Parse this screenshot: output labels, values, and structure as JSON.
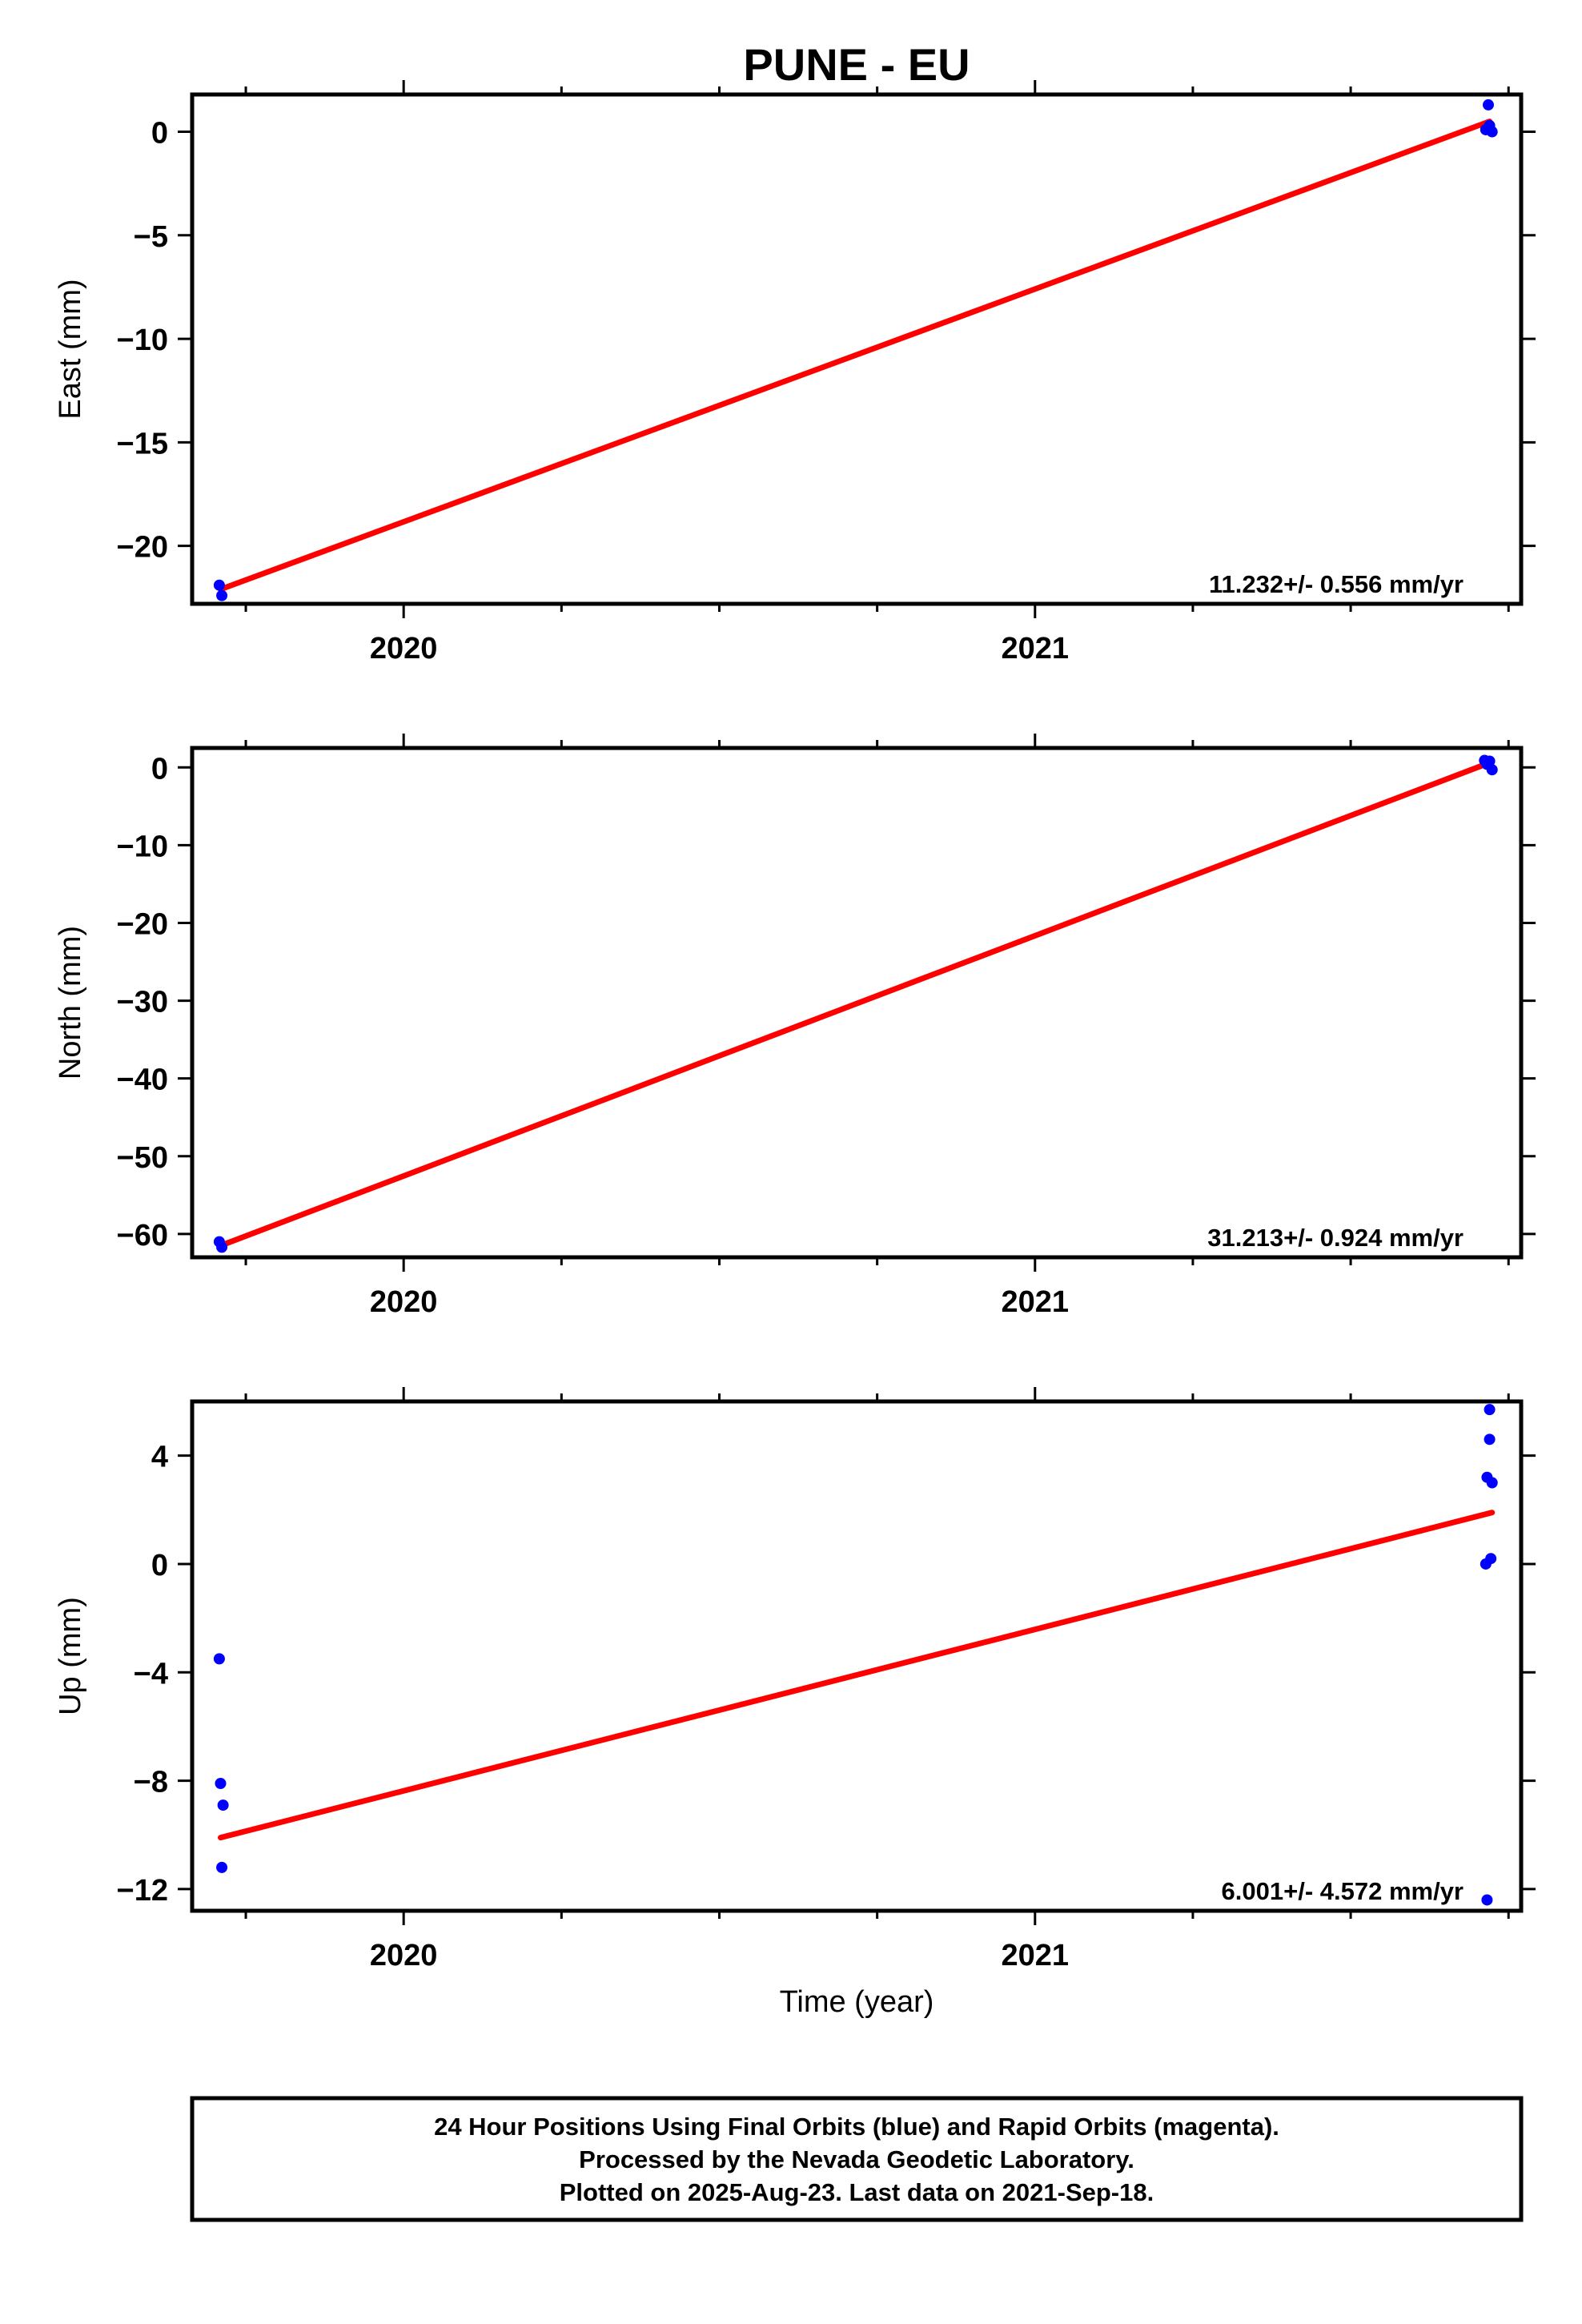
{
  "chart_data": [
    {
      "type": "scatter",
      "title": "PUNE - EU",
      "xlabel": "",
      "ylabel": "East (mm)",
      "xlim": [
        2019.665,
        2021.77
      ],
      "ylim": [
        -22.8,
        1.8
      ],
      "xticks": [
        2020,
        2021
      ],
      "xtick_labels": [
        "2020",
        "2021"
      ],
      "yticks": [
        0,
        -5,
        -10,
        -15,
        -20
      ],
      "ytick_labels": [
        "0",
        "−5",
        "−10",
        "−15",
        "−20"
      ],
      "grid": false,
      "series": [
        {
          "color": "#0000ff",
          "x": [
            2019.708,
            2019.712,
            2021.714,
            2021.718,
            2021.72,
            2021.724
          ],
          "y": [
            -21.9,
            -22.4,
            0.1,
            1.3,
            0.3,
            0.0
          ]
        },
        {
          "color": "#ff0000",
          "x": [
            2019.71,
            2021.72
          ],
          "y": [
            -22.1,
            0.5
          ]
        }
      ],
      "annotation": "11.232+/- 0.556 mm/yr"
    },
    {
      "type": "scatter",
      "xlabel": "",
      "ylabel": "North (mm)",
      "xlim": [
        2019.665,
        2021.77
      ],
      "ylim": [
        -63.0,
        2.5
      ],
      "xticks": [
        2020,
        2021
      ],
      "xtick_labels": [
        "2020",
        "2021"
      ],
      "yticks": [
        0,
        -10,
        -20,
        -30,
        -40,
        -50,
        -60
      ],
      "ytick_labels": [
        "0",
        "−10",
        "−20",
        "−30",
        "−40",
        "−50",
        "−60"
      ],
      "grid": false,
      "series": [
        {
          "color": "#0000ff",
          "x": [
            2019.708,
            2019.712,
            2021.712,
            2021.716,
            2021.72,
            2021.724
          ],
          "y": [
            -61.0,
            -61.7,
            0.9,
            0.4,
            0.8,
            -0.3
          ]
        },
        {
          "color": "#ff0000",
          "x": [
            2019.71,
            2021.72
          ],
          "y": [
            -61.5,
            0.6
          ]
        }
      ],
      "annotation": "31.213+/- 0.924 mm/yr"
    },
    {
      "type": "scatter",
      "xlabel": "Time (year)",
      "ylabel": "Up (mm)",
      "xlim": [
        2019.665,
        2021.77
      ],
      "ylim": [
        -12.8,
        6.0
      ],
      "xticks": [
        2020,
        2021
      ],
      "xtick_labels": [
        "2020",
        "2021"
      ],
      "yticks": [
        4,
        0,
        -4,
        -8,
        -12
      ],
      "ytick_labels": [
        "4",
        "0",
        "−4",
        "−8",
        "−12"
      ],
      "grid": false,
      "series": [
        {
          "color": "#0000ff",
          "x": [
            2019.708,
            2019.71,
            2019.714,
            2019.712,
            2021.714,
            2021.716,
            2021.72,
            2021.72,
            2021.724,
            2021.722,
            2021.716
          ],
          "y": [
            -3.5,
            -8.1,
            -8.9,
            -11.2,
            0.0,
            3.2,
            5.7,
            4.6,
            3.0,
            0.2,
            -12.4
          ]
        },
        {
          "color": "#ff0000",
          "x": [
            2019.71,
            2021.724
          ],
          "y": [
            -10.1,
            1.9
          ]
        }
      ],
      "annotation": "6.001+/- 4.572 mm/yr"
    }
  ],
  "footer": {
    "line1": "24 Hour Positions Using Final Orbits (blue) and Rapid Orbits (magenta).",
    "line2": "Processed by the Nevada Geodetic Laboratory.",
    "line3": "Plotted on 2025-Aug-23. Last data on 2021-Sep-18."
  }
}
